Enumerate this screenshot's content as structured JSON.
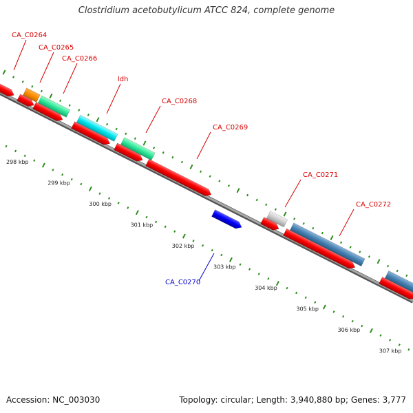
{
  "title": "Clostridium acetobutylicum ATCC 824, complete genome",
  "footer": {
    "accession": "Accession: NC_003030",
    "topology": "Topology: circular; Length: 3,940,880 bp; Genes: 3,777"
  },
  "colors": {
    "cds_red": "#ff0000",
    "label_red": "#d80000",
    "label_blue": "#0000cc",
    "tick_green": "#2e8b1e",
    "backbone": "#888888",
    "orange": "#ff8c00",
    "cyan": "#00e5ee",
    "spring_green": "#2ee89a",
    "steel_blue": "#4682b4",
    "gray": "#cccccc",
    "blue": "#0000ff"
  },
  "kbp_labels": [
    "298 kbp",
    "299 kbp",
    "300 kbp",
    "301 kbp",
    "302 kbp",
    "303 kbp",
    "304 kbp",
    "305 kbp",
    "306 kbp",
    "307 kbp"
  ],
  "gene_labels": [
    {
      "text": "CA_C0264",
      "strand": "plus"
    },
    {
      "text": "CA_C0265",
      "strand": "plus"
    },
    {
      "text": "CA_C0266",
      "strand": "plus"
    },
    {
      "text": "ldh",
      "strand": "plus"
    },
    {
      "text": "CA_C0268",
      "strand": "plus"
    },
    {
      "text": "CA_C0269",
      "strand": "plus"
    },
    {
      "text": "CA_C0271",
      "strand": "plus"
    },
    {
      "text": "CA_C0272",
      "strand": "plus"
    },
    {
      "text": "CA_C0270",
      "strand": "minus"
    }
  ]
}
